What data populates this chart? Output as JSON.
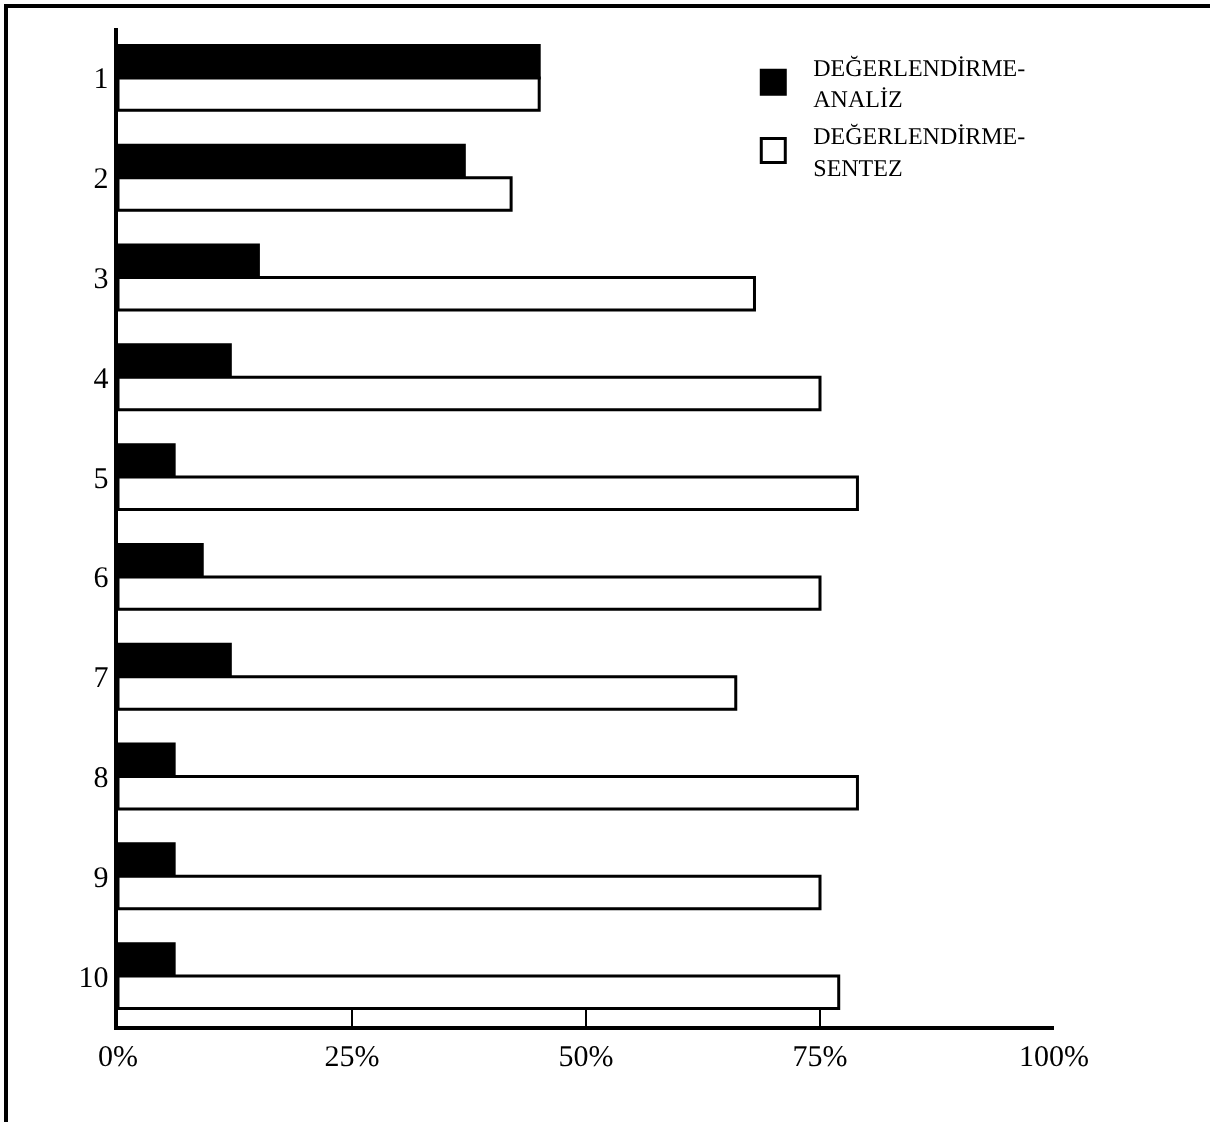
{
  "chart_data": {
    "type": "bar",
    "orientation": "horizontal",
    "categories": [
      "1",
      "2",
      "3",
      "4",
      "5",
      "6",
      "7",
      "8",
      "9",
      "10"
    ],
    "series": [
      {
        "name": "DEĞERLENDİRME-ANALİZ",
        "color": "#000000",
        "values": [
          45,
          37,
          15,
          12,
          6,
          9,
          12,
          6,
          6,
          6
        ]
      },
      {
        "name": "DEĞERLENDİRME-SENTEZ",
        "color": "#ffffff",
        "values": [
          45,
          42,
          68,
          75,
          79,
          75,
          66,
          79,
          75,
          77
        ]
      }
    ],
    "xlim": [
      0,
      100
    ],
    "xticks": [
      {
        "value": 0,
        "label": "0%"
      },
      {
        "value": 25,
        "label": "25%"
      },
      {
        "value": 50,
        "label": "50%"
      },
      {
        "value": 75,
        "label": "75%"
      },
      {
        "value": 100,
        "label": "100%"
      }
    ],
    "grid": false,
    "legend": "top right"
  }
}
